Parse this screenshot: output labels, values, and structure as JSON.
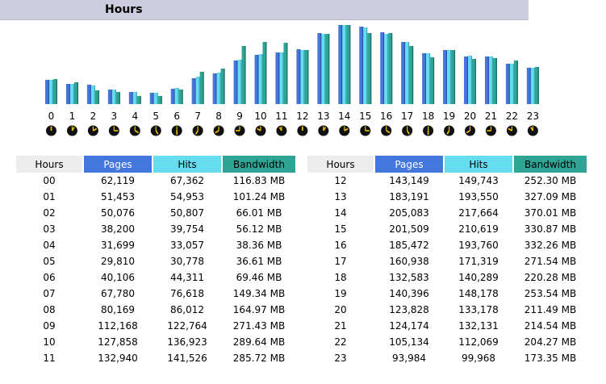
{
  "header": {
    "title": "Hours"
  },
  "colors": {
    "pages": "#4477dd",
    "hits": "#66ddee",
    "bandwidth": "#2ea495",
    "header_bg": "#cccdde"
  },
  "table_headers": {
    "hours": "Hours",
    "pages": "Pages",
    "hits": "Hits",
    "bandwidth": "Bandwidth"
  },
  "rows": [
    {
      "hour": "00",
      "pages": "62,119",
      "hits": "67,362",
      "bw": "116.83 MB"
    },
    {
      "hour": "01",
      "pages": "51,453",
      "hits": "54,953",
      "bw": "101.24 MB"
    },
    {
      "hour": "02",
      "pages": "50,076",
      "hits": "50,807",
      "bw": "66.01 MB"
    },
    {
      "hour": "03",
      "pages": "38,200",
      "hits": "39,754",
      "bw": "56.12 MB"
    },
    {
      "hour": "04",
      "pages": "31,699",
      "hits": "33,057",
      "bw": "38.36 MB"
    },
    {
      "hour": "05",
      "pages": "29,810",
      "hits": "30,778",
      "bw": "36.61 MB"
    },
    {
      "hour": "06",
      "pages": "40,106",
      "hits": "44,311",
      "bw": "69.46 MB"
    },
    {
      "hour": "07",
      "pages": "67,780",
      "hits": "76,618",
      "bw": "149.34 MB"
    },
    {
      "hour": "08",
      "pages": "80,169",
      "hits": "86,012",
      "bw": "164.97 MB"
    },
    {
      "hour": "09",
      "pages": "112,168",
      "hits": "122,764",
      "bw": "271.43 MB"
    },
    {
      "hour": "10",
      "pages": "127,858",
      "hits": "136,923",
      "bw": "289.64 MB"
    },
    {
      "hour": "11",
      "pages": "132,940",
      "hits": "141,526",
      "bw": "285.72 MB"
    },
    {
      "hour": "12",
      "pages": "143,149",
      "hits": "149,743",
      "bw": "252.30 MB"
    },
    {
      "hour": "13",
      "pages": "183,191",
      "hits": "193,550",
      "bw": "327.09 MB"
    },
    {
      "hour": "14",
      "pages": "205,083",
      "hits": "217,664",
      "bw": "370.01 MB"
    },
    {
      "hour": "15",
      "pages": "201,509",
      "hits": "210,619",
      "bw": "330.87 MB"
    },
    {
      "hour": "16",
      "pages": "185,472",
      "hits": "193,760",
      "bw": "332.26 MB"
    },
    {
      "hour": "17",
      "pages": "160,938",
      "hits": "171,319",
      "bw": "271.54 MB"
    },
    {
      "hour": "18",
      "pages": "132,583",
      "hits": "140,289",
      "bw": "220.28 MB"
    },
    {
      "hour": "19",
      "pages": "140,396",
      "hits": "148,178",
      "bw": "253.54 MB"
    },
    {
      "hour": "20",
      "pages": "123,828",
      "hits": "133,178",
      "bw": "211.49 MB"
    },
    {
      "hour": "21",
      "pages": "124,174",
      "hits": "132,131",
      "bw": "214.54 MB"
    },
    {
      "hour": "22",
      "pages": "105,134",
      "hits": "112,069",
      "bw": "204.27 MB"
    },
    {
      "hour": "23",
      "pages": "93,984",
      "hits": "99,968",
      "bw": "173.35 MB"
    }
  ],
  "chart_data": {
    "type": "bar",
    "categories": [
      "0",
      "1",
      "2",
      "3",
      "4",
      "5",
      "6",
      "7",
      "8",
      "9",
      "10",
      "11",
      "12",
      "13",
      "14",
      "15",
      "16",
      "17",
      "18",
      "19",
      "20",
      "21",
      "22",
      "23"
    ],
    "series": [
      {
        "name": "Pages",
        "values": [
          62119,
          51453,
          50076,
          38200,
          31699,
          29810,
          40106,
          67780,
          80169,
          112168,
          127858,
          132940,
          143149,
          183191,
          205083,
          201509,
          185472,
          160938,
          132583,
          140396,
          123828,
          124174,
          105134,
          93984
        ]
      },
      {
        "name": "Hits",
        "values": [
          67362,
          54953,
          50807,
          39754,
          33057,
          30778,
          44311,
          76618,
          86012,
          122764,
          136923,
          141526,
          149743,
          193550,
          217664,
          210619,
          193760,
          171319,
          140289,
          148178,
          133178,
          132131,
          112069,
          99968
        ]
      },
      {
        "name": "Bandwidth",
        "values": [
          116.83,
          101.24,
          66.01,
          56.12,
          38.36,
          36.61,
          69.46,
          149.34,
          164.97,
          271.43,
          289.64,
          285.72,
          252.3,
          327.09,
          370.01,
          330.87,
          332.26,
          271.54,
          220.28,
          253.54,
          211.49,
          214.54,
          204.27,
          173.35
        ]
      }
    ],
    "grid": false,
    "legend": "none"
  }
}
